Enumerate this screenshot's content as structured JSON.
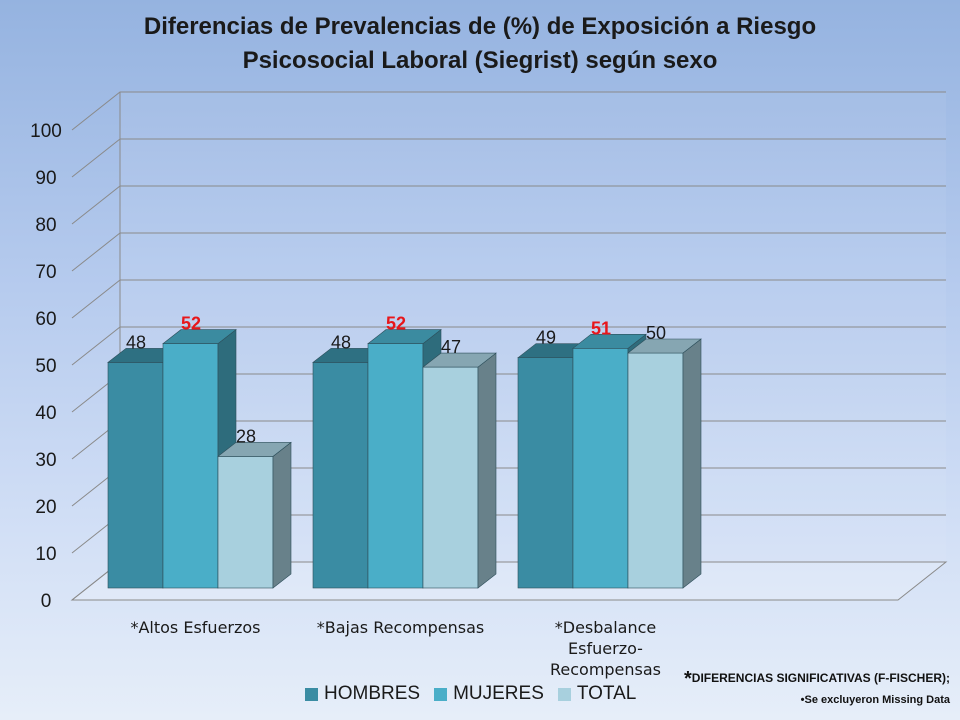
{
  "chart_data": {
    "type": "bar",
    "title_lines": [
      "Diferencias de Prevalencias de (%) de Exposición a Riesgo",
      "Psicosocial Laboral (Siegrist) según sexo"
    ],
    "categories": [
      "*Altos Esfuerzos",
      "*Bajas Recompensas",
      "*Desbalance Esfuerzo-Recompensas"
    ],
    "category_label_lines": [
      [
        "*Altos Esfuerzos"
      ],
      [
        "*Bajas Recompensas"
      ],
      [
        "*Desbalance",
        "Esfuerzo-",
        "Recompensas"
      ]
    ],
    "series": [
      {
        "name": "HOMBRES",
        "values": [
          48,
          48,
          49
        ],
        "color": "#3a8ca3",
        "label_color": "#1a1a1a"
      },
      {
        "name": "MUJERES",
        "values": [
          52,
          52,
          51
        ],
        "color": "#4aaec8",
        "label_color": "#e8161a"
      },
      {
        "name": "TOTAL",
        "values": [
          28,
          47,
          50
        ],
        "color": "#a8d0de",
        "label_color": "#1a1a1a"
      }
    ],
    "ylim": [
      0,
      100
    ],
    "yticks": [
      0,
      10,
      20,
      30,
      40,
      50,
      60,
      70,
      80,
      90,
      100
    ],
    "grid": true,
    "legend_position": "bottom",
    "style": "3d-clustered-column"
  },
  "notes": {
    "star": "*",
    "significance": "DIFERENCIAS SIGNIFICATIVAS (F-FISCHER);",
    "missing": "•Se excluyeron Missing Data"
  }
}
